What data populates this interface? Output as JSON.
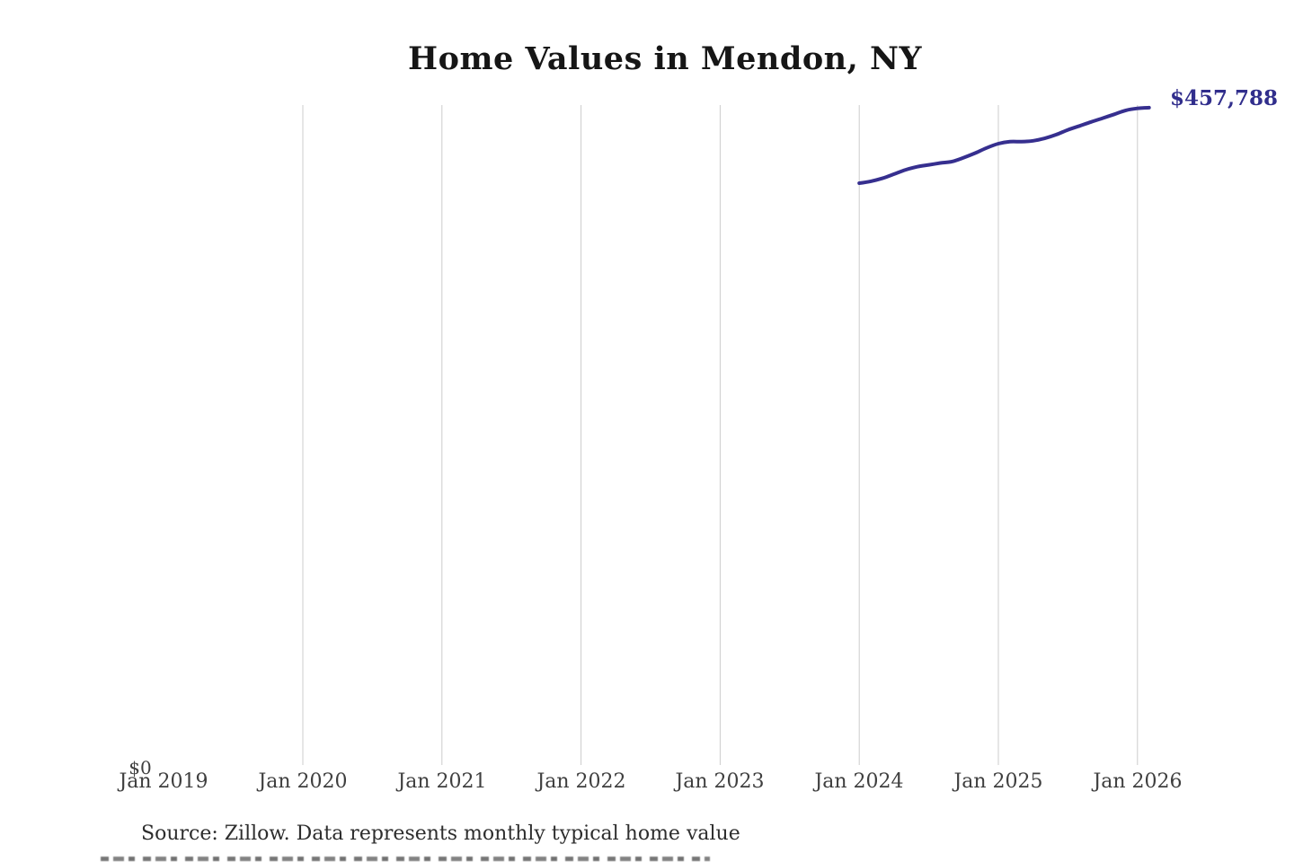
{
  "title": "Home Values in Mendon, NY",
  "source_note": "Source: Zillow. Data represents monthly typical home value",
  "colors": {
    "line": "#362f8f",
    "end_label": "#312e8c",
    "grid": "#cccccc",
    "title_text": "#161616",
    "axis_text": "#3f3f3f"
  },
  "chart_data": {
    "type": "line",
    "title": "Home Values in Mendon, NY",
    "xlabel": "",
    "ylabel": "",
    "ylim": [
      0,
      460000
    ],
    "grid": "vertical-only",
    "legend": "none",
    "y_zero_tick": "$0",
    "end_label": "$457,788",
    "end_value": 457788,
    "x_tick_labels": [
      "Jan 2019",
      "Jan 2020",
      "Jan 2021",
      "Jan 2022",
      "Jan 2023",
      "Jan 2024",
      "Jan 2025",
      "Jan 2026"
    ],
    "series": [
      {
        "name": "monthly typical home value",
        "months": [
          "2024-01",
          "2024-02",
          "2024-03",
          "2024-04",
          "2024-05",
          "2024-06",
          "2024-07",
          "2024-08",
          "2024-09",
          "2024-10",
          "2024-11",
          "2024-12",
          "2025-01",
          "2025-02",
          "2025-03",
          "2025-04",
          "2025-05",
          "2025-06",
          "2025-07",
          "2025-08",
          "2025-09",
          "2025-10",
          "2025-11",
          "2025-12",
          "2026-01",
          "2026-02"
        ],
        "values": [
          405400,
          406700,
          408800,
          411700,
          414700,
          416800,
          418100,
          419400,
          420400,
          423100,
          426300,
          429900,
          432800,
          434200,
          434200,
          434800,
          436500,
          439100,
          442400,
          445100,
          447900,
          450500,
          453200,
          455900,
          457300,
          457788
        ]
      }
    ]
  }
}
